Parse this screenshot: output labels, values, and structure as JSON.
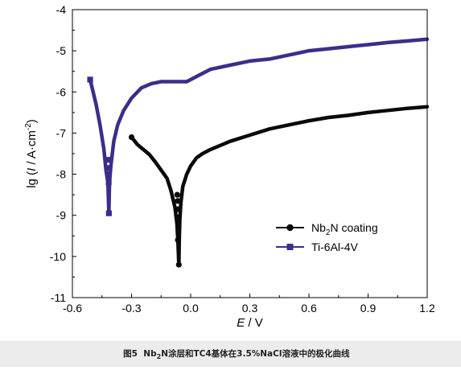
{
  "chart_data": {
    "type": "line",
    "xlabel_main": "E",
    "xlabel_unit": " / V",
    "ylabel_prefix": "lg (",
    "ylabel_italic": "I",
    "ylabel_mid": " / A·cm",
    "ylabel_sup": "-2",
    "ylabel_suffix": ")",
    "xlim": [
      -0.6,
      1.2
    ],
    "ylim": [
      -11,
      -4
    ],
    "xticks": [
      "-0.6",
      "-0.3",
      "0.0",
      "0.3",
      "0.6",
      "0.9",
      "1.2"
    ],
    "xtick_values": [
      -0.6,
      -0.3,
      0.0,
      0.3,
      0.6,
      0.9,
      1.2
    ],
    "yticks": [
      "-4",
      "-5",
      "-6",
      "-7",
      "-8",
      "-9",
      "-10",
      "-11"
    ],
    "ytick_values": [
      -4,
      -5,
      -6,
      -7,
      -8,
      -9,
      -10,
      -11
    ],
    "legend_position": "bottom-right",
    "series": [
      {
        "name_parts": [
          "Nb",
          "2",
          "N coating"
        ],
        "color": "#0a0a0a",
        "marker": "circle",
        "points": [
          [
            -0.3,
            -7.1
          ],
          [
            -0.27,
            -7.28
          ],
          [
            -0.24,
            -7.4
          ],
          [
            -0.21,
            -7.52
          ],
          [
            -0.18,
            -7.7
          ],
          [
            -0.15,
            -7.9
          ],
          [
            -0.12,
            -8.1
          ],
          [
            -0.1,
            -8.4
          ],
          [
            -0.08,
            -8.8
          ],
          [
            -0.07,
            -9.2
          ],
          [
            -0.065,
            -9.6
          ],
          [
            -0.06,
            -10.2
          ],
          [
            -0.058,
            -9.6
          ],
          [
            -0.055,
            -9.1
          ],
          [
            -0.05,
            -8.7
          ],
          [
            -0.04,
            -8.3
          ],
          [
            -0.02,
            -8.0
          ],
          [
            0.0,
            -7.8
          ],
          [
            0.03,
            -7.6
          ],
          [
            0.06,
            -7.5
          ],
          [
            0.1,
            -7.4
          ],
          [
            0.15,
            -7.3
          ],
          [
            0.2,
            -7.2
          ],
          [
            0.3,
            -7.05
          ],
          [
            0.4,
            -6.9
          ],
          [
            0.5,
            -6.8
          ],
          [
            0.6,
            -6.7
          ],
          [
            0.7,
            -6.62
          ],
          [
            0.8,
            -6.57
          ],
          [
            0.9,
            -6.5
          ],
          [
            1.0,
            -6.45
          ],
          [
            1.1,
            -6.4
          ],
          [
            1.2,
            -6.36
          ]
        ],
        "marker_points": [
          [
            -0.3,
            -7.1
          ],
          [
            -0.065,
            -9.6
          ],
          [
            -0.06,
            -10.2
          ],
          [
            -0.062,
            -9.3
          ],
          [
            -0.063,
            -9.05
          ],
          [
            -0.064,
            -8.85
          ],
          [
            -0.066,
            -8.65
          ],
          [
            -0.068,
            -8.5
          ]
        ]
      },
      {
        "name": "Ti-6Al-4V",
        "color": "#3b2e8a",
        "marker": "square",
        "points": [
          [
            -0.51,
            -5.7
          ],
          [
            -0.5,
            -5.9
          ],
          [
            -0.48,
            -6.3
          ],
          [
            -0.46,
            -6.8
          ],
          [
            -0.44,
            -7.4
          ],
          [
            -0.43,
            -7.9
          ],
          [
            -0.42,
            -8.2
          ],
          [
            -0.415,
            -8.95
          ],
          [
            -0.412,
            -8.2
          ],
          [
            -0.405,
            -7.8
          ],
          [
            -0.39,
            -7.2
          ],
          [
            -0.37,
            -6.8
          ],
          [
            -0.34,
            -6.45
          ],
          [
            -0.3,
            -6.15
          ],
          [
            -0.25,
            -5.9
          ],
          [
            -0.2,
            -5.8
          ],
          [
            -0.15,
            -5.75
          ],
          [
            -0.1,
            -5.75
          ],
          [
            -0.05,
            -5.75
          ],
          [
            -0.02,
            -5.75
          ],
          [
            0.02,
            -5.65
          ],
          [
            0.06,
            -5.55
          ],
          [
            0.1,
            -5.45
          ],
          [
            0.2,
            -5.35
          ],
          [
            0.3,
            -5.25
          ],
          [
            0.4,
            -5.2
          ],
          [
            0.5,
            -5.1
          ],
          [
            0.6,
            -5.0
          ],
          [
            0.7,
            -4.95
          ],
          [
            0.8,
            -4.9
          ],
          [
            0.9,
            -4.85
          ],
          [
            1.0,
            -4.8
          ],
          [
            1.1,
            -4.76
          ],
          [
            1.2,
            -4.72
          ]
        ],
        "marker_points": [
          [
            -0.51,
            -5.7
          ],
          [
            -0.415,
            -8.95
          ],
          [
            -0.416,
            -8.2
          ],
          [
            -0.418,
            -8.0
          ],
          [
            -0.42,
            -7.85
          ],
          [
            -0.42,
            -7.65
          ]
        ]
      }
    ]
  },
  "caption": {
    "label": "图5",
    "text_parts": [
      "Nb",
      "2",
      "N涂层和TC4基体在3.5%NaCl溶液中的极化曲线"
    ]
  }
}
